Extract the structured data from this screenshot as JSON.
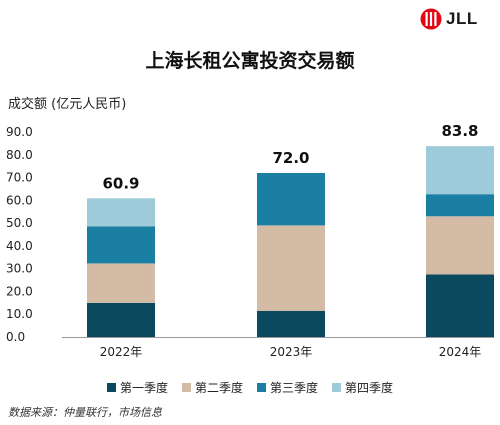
{
  "brand": {
    "name": "JLL",
    "accent": "#e30613"
  },
  "chart_data": {
    "type": "bar",
    "stacked": true,
    "title": "上海长租公寓投资交易额",
    "ylabel": "成交额 (亿元人民币)",
    "xlabel": "",
    "categories": [
      "2022年",
      "2023年",
      "2024年"
    ],
    "ylim": [
      0,
      90
    ],
    "yticks": [
      "0.0",
      "10.0",
      "20.0",
      "30.0",
      "40.0",
      "50.0",
      "60.0",
      "70.0",
      "80.0",
      "90.0"
    ],
    "series": [
      {
        "name": "第一季度",
        "color": "#0b4a5e",
        "values": [
          15.0,
          11.5,
          27.5
        ]
      },
      {
        "name": "第二季度",
        "color": "#d3bba6",
        "values": [
          17.3,
          37.5,
          25.5
        ]
      },
      {
        "name": "第三季度",
        "color": "#1a7fa3",
        "values": [
          16.3,
          23.0,
          9.7
        ]
      },
      {
        "name": "第四季度",
        "color": "#9ecbd9",
        "values": [
          12.3,
          0.0,
          21.1
        ]
      }
    ],
    "totals": [
      "60.9",
      "72.0",
      "83.8"
    ],
    "legend_position": "bottom",
    "grid": false
  },
  "footer": {
    "source": "数据来源：仲量联行，市场信息"
  }
}
